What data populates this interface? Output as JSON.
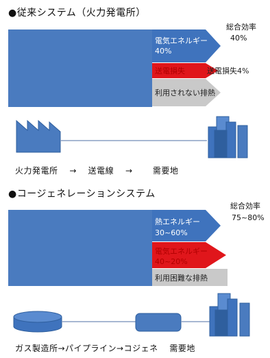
{
  "section1": {
    "title": "●従来システム（火力発電所）",
    "efficiency_label": "総合効率",
    "efficiency_value": "40%",
    "electric_label": "電気エネルギー",
    "electric_value": "40%",
    "transmission_loss_left": "送電損失",
    "transmission_loss_right": "送電損失4%",
    "unused_heat": "利用されない排熱",
    "flow_caption": "火力発電所　 →　 送電線　 →　 　需要地"
  },
  "section2": {
    "title": "●コージェネレーションシステム",
    "efficiency_label": "総合効率",
    "efficiency_value": "75~80%",
    "heat_label": "熱エネルギー",
    "heat_value": "30~60%",
    "electric_label": "電気エネルギー",
    "electric_value": "40~20%",
    "hard_to_use_heat": "利用困難な排熱",
    "flow_caption": "ガス製造所→パイプライン→コジェネ　 需要地"
  },
  "colors": {
    "blue": "#4a7bbf",
    "blue_dark": "#2f5f9e",
    "red": "#e0161b",
    "gray": "#c9c9c9",
    "line": "#8a9fc4"
  }
}
